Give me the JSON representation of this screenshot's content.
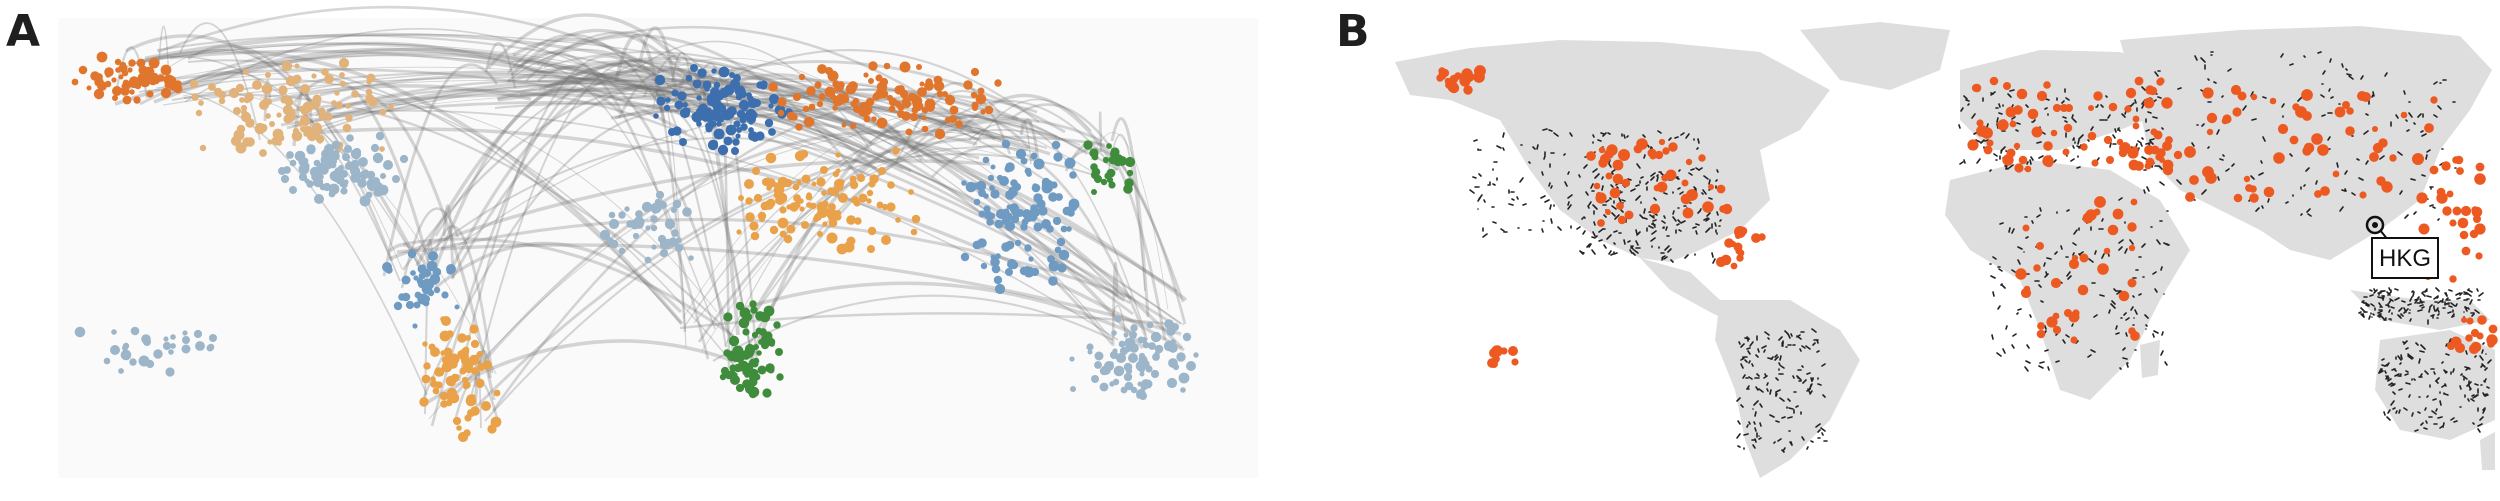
{
  "panels": [
    {
      "label": "A"
    },
    {
      "label": "B"
    }
  ],
  "highlight_airport": {
    "code": "HKG"
  },
  "colors": {
    "route_line": "#6f6f6f",
    "land": "#dcdcdc",
    "airport_dot": "#ec5a22",
    "cluster_orange": "#e0762d",
    "cluster_tan": "#e1b27a",
    "cluster_lightblue": "#9cb5c8",
    "cluster_blue": "#3d6fae",
    "cluster_midblue": "#6f9ac2",
    "cluster_green": "#3f8c3c",
    "cluster_gold": "#e9a24a"
  }
}
